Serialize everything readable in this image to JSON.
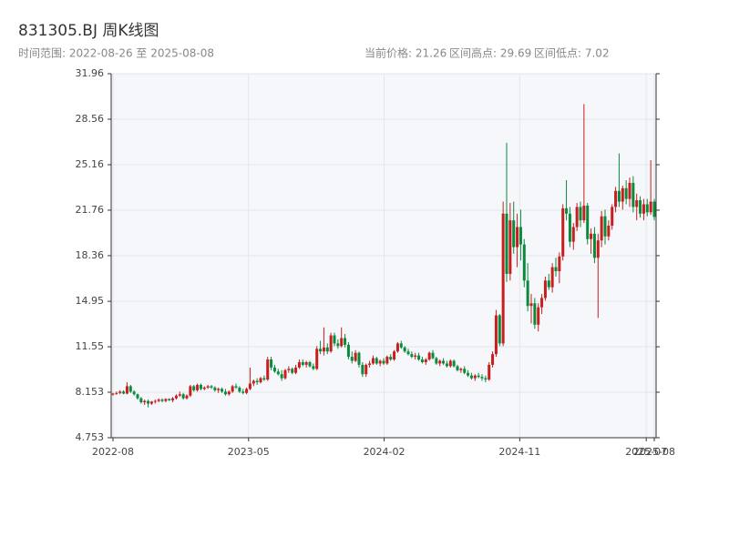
{
  "chart_data": {
    "type": "candlestick",
    "title": "831305.BJ 周K线图",
    "subtitle": "时间范围: 2022-08-26 至 2025-08-08",
    "stats": [
      "当前价格: 21.26",
      "区间高点: 29.69",
      "区间低点: 7.02"
    ],
    "up_color": "#c81e1e",
    "down_color": "#0a8a3c",
    "grid": true,
    "x": [
      "2022-08-26",
      "2022-09-02",
      "2022-09-09",
      "2022-09-16",
      "2022-09-23",
      "2022-09-30",
      "2022-10-07",
      "2022-10-14",
      "2022-10-21",
      "2022-10-28",
      "2022-11-04",
      "2022-11-11",
      "2022-11-18",
      "2022-11-25",
      "2022-12-02",
      "2022-12-09",
      "2022-12-16",
      "2022-12-23",
      "2022-12-30",
      "2023-01-06",
      "2023-01-13",
      "2023-01-20",
      "2023-01-27",
      "2023-02-03",
      "2023-02-10",
      "2023-02-17",
      "2023-02-24",
      "2023-03-03",
      "2023-03-10",
      "2023-03-17",
      "2023-03-24",
      "2023-03-31",
      "2023-04-07",
      "2023-04-14",
      "2023-04-21",
      "2023-04-28",
      "2023-05-05",
      "2023-05-12",
      "2023-05-19",
      "2023-05-26",
      "2023-06-02",
      "2023-06-09",
      "2023-06-16",
      "2023-06-23",
      "2023-06-30",
      "2023-07-07",
      "2023-07-14",
      "2023-07-21",
      "2023-07-28",
      "2023-08-04",
      "2023-08-11",
      "2023-08-18",
      "2023-08-25",
      "2023-09-01",
      "2023-09-08",
      "2023-09-15",
      "2023-09-22",
      "2023-09-29",
      "2023-10-06",
      "2023-10-13",
      "2023-10-20",
      "2023-10-27",
      "2023-11-03",
      "2023-11-10",
      "2023-11-17",
      "2023-11-24",
      "2023-12-01",
      "2023-12-08",
      "2023-12-15",
      "2023-12-22",
      "2023-12-29",
      "2024-01-05",
      "2024-01-12",
      "2024-01-19",
      "2024-01-26",
      "2024-02-02",
      "2024-02-09",
      "2024-02-16",
      "2024-02-23",
      "2024-03-01",
      "2024-03-08",
      "2024-03-15",
      "2024-03-22",
      "2024-03-29",
      "2024-04-05",
      "2024-04-12",
      "2024-04-19",
      "2024-04-26",
      "2024-05-03",
      "2024-05-10",
      "2024-05-17",
      "2024-05-24",
      "2024-05-31",
      "2024-06-07",
      "2024-06-14",
      "2024-06-21",
      "2024-06-28",
      "2024-07-05",
      "2024-07-12",
      "2024-07-19",
      "2024-07-26",
      "2024-08-02",
      "2024-08-09",
      "2024-08-16",
      "2024-08-23",
      "2024-08-30",
      "2024-09-06",
      "2024-09-13",
      "2024-09-20",
      "2024-09-27",
      "2024-10-04",
      "2024-10-11",
      "2024-10-18",
      "2024-10-25",
      "2024-11-01",
      "2024-11-08",
      "2024-11-15",
      "2024-11-22",
      "2024-11-29",
      "2024-12-06",
      "2024-12-13",
      "2024-12-20",
      "2024-12-27",
      "2025-01-03",
      "2025-01-10",
      "2025-01-17",
      "2025-01-24",
      "2025-01-31",
      "2025-02-07",
      "2025-02-14",
      "2025-02-21",
      "2025-02-28",
      "2025-03-07",
      "2025-03-14",
      "2025-03-21",
      "2025-03-28",
      "2025-04-04",
      "2025-04-11",
      "2025-04-18",
      "2025-04-25",
      "2025-05-02",
      "2025-05-09",
      "2025-05-16",
      "2025-05-23",
      "2025-05-30",
      "2025-06-06",
      "2025-06-13",
      "2025-06-20",
      "2025-06-27",
      "2025-07-04",
      "2025-07-11",
      "2025-07-18",
      "2025-07-25",
      "2025-08-01",
      "2025-08-08"
    ],
    "open": [
      8.0,
      8.05,
      8.1,
      8.2,
      8.05,
      8.6,
      8.2,
      8.0,
      7.7,
      7.4,
      7.5,
      7.3,
      7.45,
      7.5,
      7.6,
      7.5,
      7.65,
      7.55,
      7.7,
      7.9,
      8.0,
      7.7,
      7.9,
      8.6,
      8.3,
      8.7,
      8.4,
      8.5,
      8.6,
      8.5,
      8.3,
      8.4,
      8.2,
      8.0,
      8.2,
      8.6,
      8.5,
      8.2,
      8.1,
      8.4,
      8.8,
      9.0,
      8.9,
      9.2,
      9.1,
      10.6,
      10.0,
      9.7,
      9.5,
      9.2,
      9.8,
      9.9,
      9.6,
      10.0,
      10.4,
      10.2,
      10.4,
      10.1,
      9.9,
      11.4,
      11.2,
      11.5,
      11.2,
      12.4,
      11.8,
      11.6,
      12.2,
      11.7,
      10.8,
      10.5,
      11.1,
      10.2,
      9.5,
      10.2,
      10.3,
      10.7,
      10.3,
      10.5,
      10.3,
      10.8,
      10.6,
      11.2,
      11.8,
      11.5,
      11.2,
      11.0,
      10.8,
      10.9,
      10.6,
      10.4,
      10.6,
      11.1,
      10.7,
      10.3,
      10.5,
      10.3,
      10.1,
      10.5,
      10.1,
      9.8,
      9.9,
      9.6,
      9.4,
      9.2,
      9.4,
      9.3,
      9.2,
      9.1,
      10.2,
      11.0,
      13.9,
      11.8,
      21.5,
      17.0,
      21.0,
      19.0,
      20.5,
      19.2,
      16.5,
      14.6,
      14.8,
      13.2,
      14.5,
      15.2,
      16.5,
      16.0,
      17.5,
      17.2,
      18.3,
      21.9,
      21.5,
      19.4,
      20.5,
      22.0,
      21.0,
      22.1,
      19.6,
      20.0,
      18.2,
      19.5,
      21.3,
      19.8,
      20.6,
      22.0,
      23.2,
      22.4,
      23.4,
      22.6,
      23.8,
      22.0,
      22.5,
      21.5,
      22.2,
      21.6,
      22.4
    ],
    "high": [
      8.1,
      8.2,
      8.3,
      8.3,
      8.9,
      8.7,
      8.3,
      8.05,
      7.8,
      7.6,
      7.6,
      7.5,
      7.6,
      7.7,
      7.7,
      7.7,
      7.7,
      7.8,
      8.0,
      8.2,
      8.1,
      8.0,
      8.7,
      8.7,
      8.8,
      8.8,
      8.6,
      8.7,
      8.7,
      8.6,
      8.5,
      8.5,
      8.4,
      8.3,
      8.7,
      8.8,
      8.6,
      8.4,
      8.5,
      10.0,
      9.1,
      9.2,
      9.3,
      9.4,
      10.8,
      10.8,
      10.2,
      9.9,
      9.8,
      9.9,
      10.1,
      10.0,
      10.2,
      10.6,
      10.6,
      10.5,
      10.5,
      10.3,
      11.6,
      12.0,
      13.0,
      11.8,
      12.6,
      12.6,
      12.1,
      13.0,
      12.5,
      11.9,
      11.2,
      11.3,
      11.2,
      10.4,
      10.3,
      10.5,
      10.9,
      10.8,
      10.6,
      10.7,
      10.9,
      11.0,
      11.3,
      11.9,
      12.0,
      11.6,
      11.4,
      11.2,
      11.1,
      11.1,
      10.8,
      10.7,
      11.2,
      11.3,
      10.8,
      10.6,
      10.7,
      10.5,
      10.6,
      10.6,
      10.2,
      10.0,
      10.1,
      9.8,
      9.6,
      9.5,
      9.6,
      9.5,
      9.4,
      10.4,
      11.2,
      14.3,
      14.0,
      22.4,
      26.8,
      22.3,
      22.4,
      21.5,
      21.8,
      19.6,
      17.8,
      15.5,
      15.2,
      14.8,
      15.5,
      16.8,
      17.0,
      17.8,
      18.2,
      18.6,
      22.2,
      24.0,
      22.0,
      20.8,
      22.3,
      22.4,
      29.69,
      22.3,
      20.4,
      20.5,
      20.0,
      21.7,
      21.8,
      21.0,
      22.2,
      23.5,
      26.0,
      23.6,
      24.0,
      24.2,
      24.3,
      23.0,
      22.8,
      22.6,
      22.6,
      25.5,
      22.6
    ],
    "low": [
      7.9,
      7.95,
      8.0,
      8.0,
      8.0,
      8.1,
      7.9,
      7.6,
      7.3,
      7.2,
      7.02,
      7.2,
      7.3,
      7.4,
      7.4,
      7.4,
      7.5,
      7.4,
      7.6,
      7.8,
      7.6,
      7.6,
      7.8,
      8.2,
      8.2,
      8.3,
      8.3,
      8.4,
      8.4,
      8.2,
      8.1,
      8.1,
      7.9,
      7.9,
      8.1,
      8.4,
      8.1,
      8.0,
      8.0,
      8.3,
      8.6,
      8.7,
      8.8,
      9.0,
      9.0,
      9.8,
      9.6,
      9.4,
      9.0,
      9.1,
      9.6,
      9.5,
      9.5,
      9.9,
      10.1,
      10.0,
      10.0,
      9.8,
      9.8,
      11.0,
      10.9,
      11.0,
      11.1,
      11.6,
      11.4,
      11.5,
      11.5,
      10.6,
      10.3,
      10.4,
      10.0,
      9.3,
      9.3,
      10.0,
      10.2,
      10.2,
      10.1,
      10.2,
      10.2,
      10.5,
      10.5,
      11.1,
      11.4,
      11.1,
      10.9,
      10.7,
      10.6,
      10.5,
      10.3,
      10.2,
      10.5,
      10.6,
      10.2,
      10.1,
      10.2,
      10.0,
      10.0,
      10.0,
      9.7,
      9.6,
      9.5,
      9.3,
      9.1,
      9.0,
      9.2,
      9.0,
      8.9,
      9.0,
      10.0,
      10.8,
      11.6,
      11.6,
      16.4,
      16.5,
      18.5,
      17.5,
      18.0,
      16.0,
      14.2,
      13.3,
      12.9,
      12.7,
      14.0,
      15.0,
      15.8,
      15.6,
      16.8,
      16.3,
      18.0,
      21.0,
      19.0,
      18.8,
      20.2,
      20.5,
      20.8,
      19.2,
      18.5,
      17.8,
      13.7,
      19.0,
      19.2,
      19.5,
      20.3,
      21.6,
      22.0,
      21.8,
      22.2,
      22.0,
      21.6,
      21.0,
      21.2,
      21.0,
      21.3,
      21.4,
      21.0
    ],
    "close": [
      8.05,
      8.1,
      8.2,
      8.05,
      8.6,
      8.2,
      8.0,
      7.7,
      7.4,
      7.5,
      7.3,
      7.45,
      7.5,
      7.6,
      7.5,
      7.65,
      7.55,
      7.7,
      7.9,
      8.0,
      7.7,
      7.9,
      8.6,
      8.3,
      8.7,
      8.4,
      8.5,
      8.6,
      8.5,
      8.3,
      8.4,
      8.2,
      8.0,
      8.2,
      8.6,
      8.5,
      8.2,
      8.1,
      8.4,
      8.8,
      9.0,
      8.9,
      9.2,
      9.1,
      10.6,
      10.0,
      9.7,
      9.5,
      9.2,
      9.8,
      9.9,
      9.6,
      10.0,
      10.4,
      10.2,
      10.4,
      10.1,
      9.9,
      11.4,
      11.2,
      11.5,
      11.2,
      12.4,
      11.8,
      11.6,
      12.2,
      11.7,
      10.8,
      10.5,
      11.1,
      10.2,
      9.5,
      10.2,
      10.3,
      10.7,
      10.3,
      10.5,
      10.3,
      10.8,
      10.6,
      11.2,
      11.8,
      11.5,
      11.2,
      11.0,
      10.8,
      10.9,
      10.6,
      10.4,
      10.6,
      11.1,
      10.7,
      10.3,
      10.5,
      10.3,
      10.1,
      10.5,
      10.1,
      9.8,
      9.9,
      9.6,
      9.4,
      9.2,
      9.4,
      9.3,
      9.2,
      9.1,
      10.2,
      11.0,
      13.9,
      11.8,
      21.5,
      17.0,
      21.0,
      19.0,
      20.5,
      19.2,
      16.5,
      14.6,
      14.8,
      13.2,
      14.5,
      15.2,
      16.5,
      16.0,
      17.5,
      17.2,
      18.3,
      21.9,
      21.5,
      19.4,
      20.5,
      22.0,
      21.0,
      22.1,
      19.6,
      20.0,
      18.2,
      19.5,
      21.3,
      19.8,
      20.6,
      22.0,
      23.2,
      22.4,
      23.4,
      22.6,
      23.8,
      22.0,
      22.5,
      21.5,
      22.2,
      21.6,
      22.4,
      21.26
    ],
    "xlim": [
      "2022-08-26",
      "2025-08-08"
    ],
    "xticks": [
      {
        "value": "2022-08-26",
        "label": "2022-08"
      },
      {
        "value": "2023-05-23",
        "label": "2023-05"
      },
      {
        "value": "2024-02-17",
        "label": "2024-02"
      },
      {
        "value": "2024-11-13",
        "label": "2024-11"
      },
      {
        "value": "2025-07-23",
        "label": "2025-07"
      },
      {
        "value": "2025-08-08",
        "label": "2025-08"
      }
    ],
    "ylim": [
      4.753,
      31.96
    ],
    "yticks": [
      4.753,
      8.153,
      11.55,
      14.95,
      18.36,
      21.76,
      25.16,
      28.56,
      31.96
    ]
  }
}
